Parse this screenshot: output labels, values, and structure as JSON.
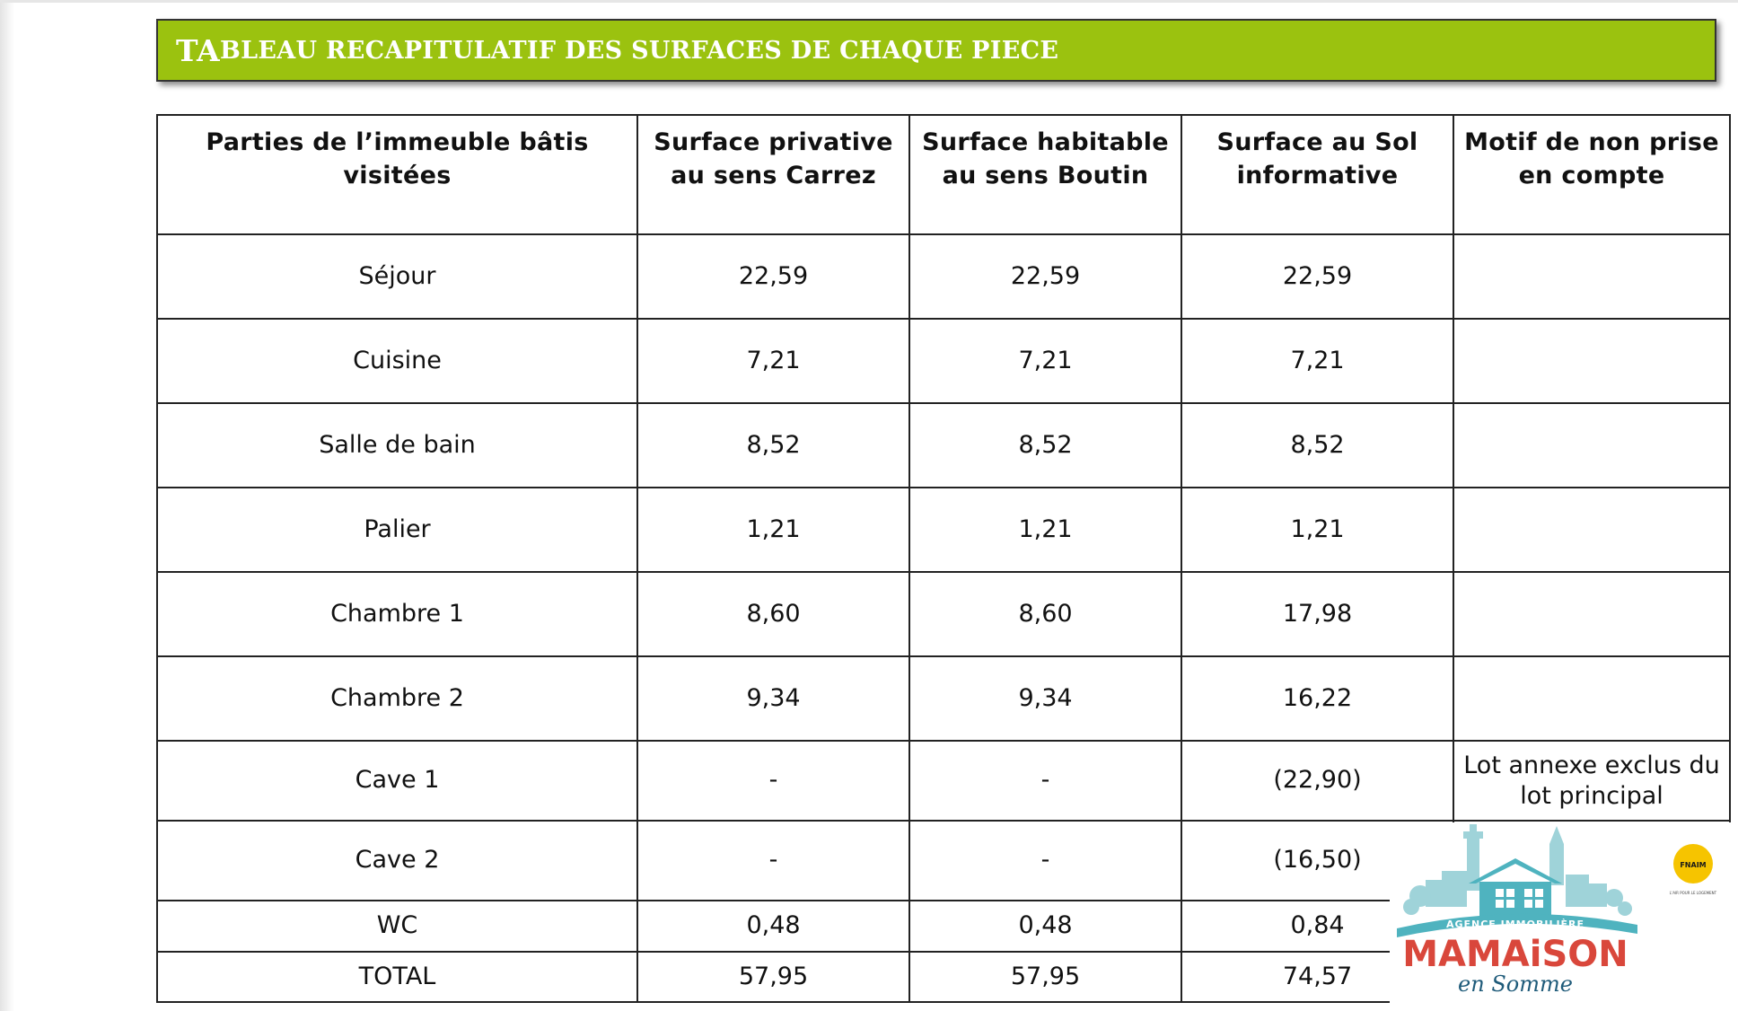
{
  "colors": {
    "banner": "#9BC20F",
    "border": "#222222",
    "logo_teal": "#4FB3BF",
    "logo_red": "#D9473B",
    "logo_navy": "#1F5B7A",
    "badge_yellow": "#F6C400"
  },
  "title": {
    "lead": "TA",
    "rest": "BLEAU RECAPITULATIF DES SURFACES DE CHAQUE PIECE"
  },
  "table": {
    "headers": [
      "Parties de l’immeuble bâtis visitées",
      "Surface privative au sens Carrez",
      "Surface habitable au sens Boutin",
      "Surface au Sol informative",
      "Motif de non prise en compte"
    ],
    "rows": [
      {
        "piece": "Séjour",
        "carrez": "22,59",
        "boutin": "22,59",
        "sol": "22,59",
        "motif": ""
      },
      {
        "piece": "Cuisine",
        "carrez": "7,21",
        "boutin": "7,21",
        "sol": "7,21",
        "motif": ""
      },
      {
        "piece": "Salle de bain",
        "carrez": "8,52",
        "boutin": "8,52",
        "sol": "8,52",
        "motif": ""
      },
      {
        "piece": "Palier",
        "carrez": "1,21",
        "boutin": "1,21",
        "sol": "1,21",
        "motif": ""
      },
      {
        "piece": "Chambre 1",
        "carrez": "8,60",
        "boutin": "8,60",
        "sol": "17,98",
        "motif": ""
      },
      {
        "piece": "Chambre 2",
        "carrez": "9,34",
        "boutin": "9,34",
        "sol": "16,22",
        "motif": ""
      },
      {
        "piece": "Cave 1",
        "carrez": "-",
        "boutin": "-",
        "sol": "(22,90)",
        "motif": "Lot annexe exclus du lot principal"
      },
      {
        "piece": "Cave 2",
        "carrez": "-",
        "boutin": "-",
        "sol": "(16,50)",
        "motif": ""
      },
      {
        "piece": "WC",
        "carrez": "0,48",
        "boutin": "0,48",
        "sol": "0,84",
        "motif": ""
      },
      {
        "piece": "TOTAL",
        "carrez": "57,95",
        "boutin": "57,95",
        "sol": "74,57",
        "motif": ""
      }
    ]
  },
  "logo": {
    "top_line": "AGENCE IMMOBILIÈRE",
    "name": "MAMAiSON",
    "tagline": "en Somme",
    "badge": "FNAIM",
    "badge_sub": "L'AIR POUR LE LOGEMENT",
    "icons": [
      "town-skyline-icon",
      "house-icon",
      "fnaim-badge-icon"
    ]
  }
}
